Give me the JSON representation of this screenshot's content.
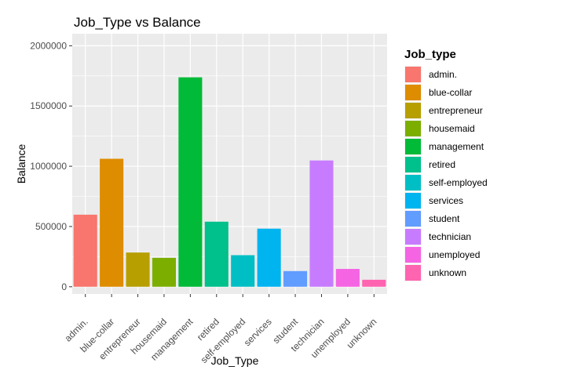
{
  "chart_data": {
    "type": "bar",
    "title": "Job_Type vs Balance",
    "xlabel": "Job_Type",
    "ylabel": "Balance",
    "ylim": [
      -60000,
      2100000
    ],
    "yticks": [
      0,
      500000,
      1000000,
      1500000,
      2000000
    ],
    "ytick_labels": [
      "0",
      "500000",
      "1000000",
      "1500000",
      "2000000"
    ],
    "grid": true,
    "legend_title": "Job_type",
    "legend_position": "right",
    "categories": [
      "admin.",
      "blue-collar",
      "entrepreneur",
      "housemaid",
      "management",
      "retired",
      "self-employed",
      "services",
      "student",
      "technician",
      "unemployed",
      "unknown"
    ],
    "values": [
      598000,
      1062000,
      284000,
      240000,
      1738000,
      540000,
      262000,
      482000,
      130000,
      1048000,
      148000,
      58000
    ],
    "colors": [
      "#F8766D",
      "#DE8C00",
      "#B79F00",
      "#7CAE00",
      "#00BA38",
      "#00C08B",
      "#00BFC4",
      "#00B4F0",
      "#619CFF",
      "#C77CFF",
      "#F564E3",
      "#FF64B0"
    ]
  }
}
